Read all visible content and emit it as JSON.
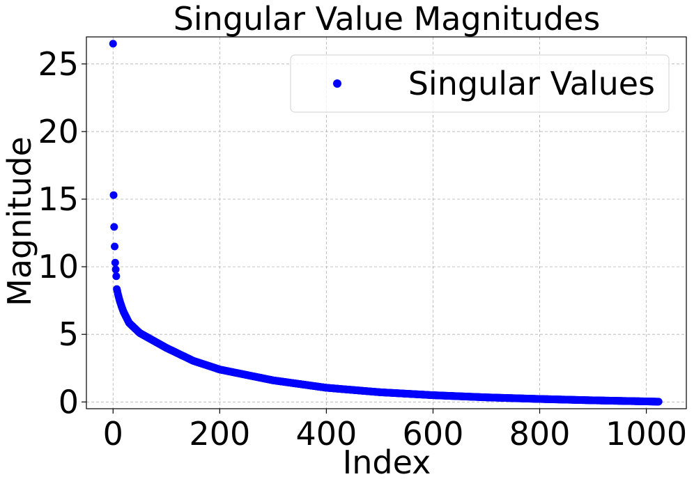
{
  "chart_data": {
    "type": "scatter",
    "title": "Singular Value Magnitudes",
    "xlabel": "Index",
    "ylabel": "Magnitude",
    "xlim": [
      -50,
      1075
    ],
    "ylim": [
      -0.5,
      27
    ],
    "xticks": [
      0,
      200,
      400,
      600,
      800,
      1000
    ],
    "yticks": [
      0,
      5,
      10,
      15,
      20,
      25
    ],
    "grid": true,
    "legend_position": "top-right",
    "series": [
      {
        "name": "Singular Values",
        "color": "#0000ff",
        "marker": "circle",
        "n_points": 1024,
        "head_values": [
          26.5,
          15.3,
          12.95,
          11.5,
          10.3,
          9.8,
          9.3,
          8.35,
          8.2,
          8.0,
          7.85,
          7.7,
          7.55,
          7.42,
          7.3,
          7.18,
          7.06,
          6.95,
          6.84,
          6.74,
          6.64
        ],
        "profile": [
          {
            "x": 20,
            "y": 6.64
          },
          {
            "x": 30,
            "y": 5.85
          },
          {
            "x": 50,
            "y": 5.1
          },
          {
            "x": 100,
            "y": 4.0
          },
          {
            "x": 150,
            "y": 3.05
          },
          {
            "x": 200,
            "y": 2.4
          },
          {
            "x": 300,
            "y": 1.6
          },
          {
            "x": 400,
            "y": 1.05
          },
          {
            "x": 500,
            "y": 0.72
          },
          {
            "x": 600,
            "y": 0.5
          },
          {
            "x": 700,
            "y": 0.34
          },
          {
            "x": 800,
            "y": 0.22
          },
          {
            "x": 900,
            "y": 0.12
          },
          {
            "x": 1000,
            "y": 0.04
          },
          {
            "x": 1023,
            "y": 0.02
          }
        ]
      }
    ]
  }
}
